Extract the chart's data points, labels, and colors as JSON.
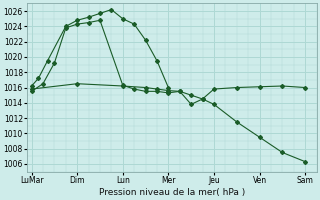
{
  "background_color": "#ceecea",
  "grid_color": "#aed8d4",
  "line_color": "#1a5c28",
  "xlabel": "Pression niveau de la mer( hPa )",
  "ylim": [
    1005,
    1027
  ],
  "yticks": [
    1006,
    1008,
    1010,
    1012,
    1014,
    1016,
    1018,
    1020,
    1022,
    1024,
    1026
  ],
  "xtick_labels": [
    "LuMar",
    "Dim",
    "Lun",
    "Mer",
    "Jeu",
    "Ven",
    "Sam"
  ],
  "xtick_positions": [
    0,
    2,
    4,
    6,
    8,
    10,
    12
  ],
  "line1_x": [
    0,
    0.3,
    0.7,
    1.5,
    2.0,
    2.5,
    3.0,
    3.5,
    4.0,
    4.5,
    5.0,
    5.5,
    6.0
  ],
  "line1_y": [
    1016.2,
    1017.2,
    1019.5,
    1024.0,
    1024.8,
    1025.2,
    1025.7,
    1026.2,
    1025.0,
    1024.3,
    1022.2,
    1019.5,
    1016.0
  ],
  "line2_x": [
    0,
    0.5,
    1.0,
    1.5,
    2.0,
    2.5,
    3.0,
    4.0,
    4.5,
    5.0,
    5.5,
    6.0,
    6.5,
    7.0,
    7.5,
    8.0,
    9.0,
    10.0,
    11.0,
    12.0
  ],
  "line2_y": [
    1015.5,
    1016.5,
    1019.2,
    1023.8,
    1024.3,
    1024.5,
    1024.8,
    1016.3,
    1015.8,
    1015.5,
    1015.5,
    1015.3,
    1015.5,
    1013.8,
    1014.5,
    1015.8,
    1016.0,
    1016.1,
    1016.2,
    1016.0
  ],
  "line3_x": [
    0,
    2,
    4,
    5,
    5.5,
    6.0,
    6.5,
    7.0,
    7.5,
    8.0,
    9.0,
    10.0,
    11.0,
    12.0
  ],
  "line3_y": [
    1015.8,
    1016.5,
    1016.2,
    1016.0,
    1015.8,
    1015.6,
    1015.5,
    1015.0,
    1014.5,
    1013.8,
    1011.5,
    1009.5,
    1007.5,
    1006.3
  ]
}
